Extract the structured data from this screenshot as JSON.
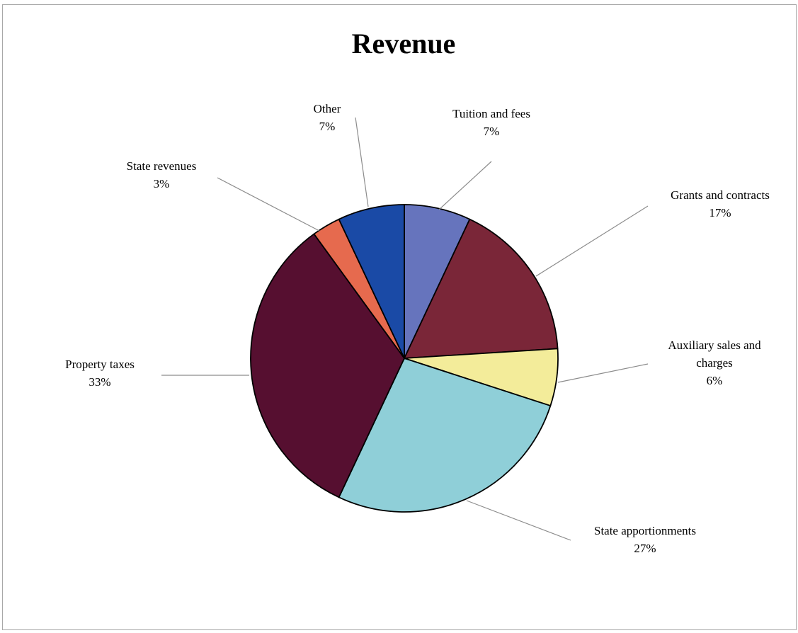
{
  "chart_data": {
    "type": "pie",
    "title": "Revenue",
    "slices": [
      {
        "label": "Tuition and fees",
        "label_lines": [
          "Tuition and fees",
          "7%"
        ],
        "value": 7,
        "color": "#6674bd"
      },
      {
        "label": "Grants and contracts",
        "label_lines": [
          "Grants and contracts",
          "17%"
        ],
        "value": 17,
        "color": "#7a2638"
      },
      {
        "label": "Auxiliary sales and charges",
        "label_lines": [
          "Auxiliary sales and",
          "charges",
          "6%"
        ],
        "value": 6,
        "color": "#f3ec9a"
      },
      {
        "label": "State apportionments",
        "label_lines": [
          "State apportionments",
          "27%"
        ],
        "value": 27,
        "color": "#8fcfd8"
      },
      {
        "label": "Property taxes",
        "label_lines": [
          "Property taxes",
          "33%"
        ],
        "value": 33,
        "color": "#560f30"
      },
      {
        "label": "State revenues",
        "label_lines": [
          "State revenues",
          "3%"
        ],
        "value": 3,
        "color": "#e66a4e"
      },
      {
        "label": "Other",
        "label_lines": [
          "Other",
          "7%"
        ],
        "value": 7,
        "color": "#1a4aa6"
      }
    ]
  }
}
